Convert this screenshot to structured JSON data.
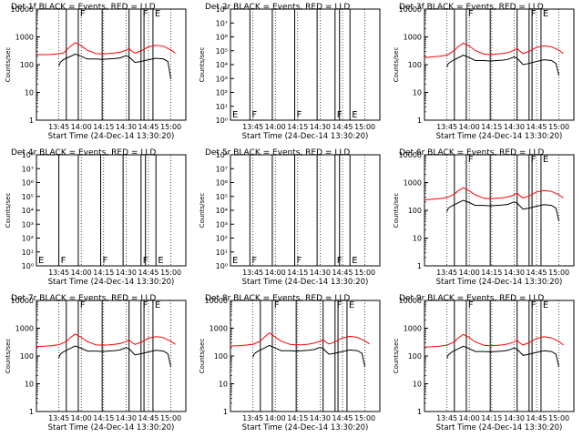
{
  "colors": {
    "events": "#000000",
    "lld": "#ff0000",
    "frame": "#000000"
  },
  "x_tick_labels": [
    "13:45",
    "14:00",
    "14:15",
    "14:30",
    "14:45",
    "15:00"
  ],
  "x_tick_minutes": [
    15,
    30,
    45,
    60,
    75,
    90
  ],
  "xlim_minutes": [
    0,
    100
  ],
  "xlabel": "Start Time (24-Dec-14 13:30:20)",
  "ylabel": "Counts/sec",
  "chart_data": [
    {
      "type": "line",
      "title": "Det 1f BLACK = Events, RED = LLD",
      "yscale": "log",
      "ylim": [
        1,
        10000
      ],
      "y_tick_labels": [
        "1",
        "10",
        "100",
        "1000",
        "10000"
      ],
      "y_tick_values": [
        1,
        10,
        100,
        1000,
        10000
      ],
      "markers": [
        {
          "label": "",
          "x": 20
        },
        {
          "label": "F",
          "x": 28
        },
        {
          "label": "",
          "x": 44
        },
        {
          "label": "",
          "x": 62
        },
        {
          "label": "F",
          "x": 70
        },
        {
          "label": "",
          "x": 72
        },
        {
          "label": "E",
          "x": 78
        }
      ],
      "series": [
        {
          "name": "RED = LLD",
          "color": "red",
          "x": [
            0,
            5,
            10,
            15,
            18,
            20,
            22,
            26,
            30,
            34,
            40,
            44,
            48,
            52,
            56,
            60,
            62,
            64,
            66,
            70,
            75,
            80,
            85,
            90,
            93
          ],
          "y": [
            230,
            230,
            235,
            245,
            260,
            330,
            420,
            620,
            480,
            330,
            250,
            245,
            250,
            260,
            280,
            330,
            380,
            300,
            260,
            310,
            440,
            500,
            460,
            340,
            260
          ]
        },
        {
          "name": "BLACK = Events",
          "color": "black",
          "x": [
            15,
            16,
            18,
            20,
            22,
            26,
            30,
            34,
            40,
            44,
            48,
            52,
            56,
            60,
            62,
            64,
            66,
            70,
            75,
            80,
            85,
            88,
            90
          ],
          "y": [
            90,
            120,
            150,
            170,
            190,
            240,
            200,
            160,
            160,
            155,
            160,
            165,
            175,
            210,
            190,
            150,
            120,
            130,
            150,
            170,
            160,
            130,
            30
          ]
        }
      ]
    },
    {
      "type": "line",
      "title": "Det 2r BLACK = Events, RED = LLD",
      "yscale": "log",
      "ylim": [
        1,
        100000000
      ],
      "y_tick_labels": [
        "10⁰",
        "10¹",
        "10²",
        "10³",
        "10⁴",
        "10⁵",
        "10⁶",
        "10⁷",
        "10⁸"
      ],
      "y_tick_values": [
        1,
        10,
        100,
        1000,
        10000,
        100000,
        1000000,
        10000000,
        100000000
      ],
      "markers": [
        {
          "label": "E",
          "x": 0
        },
        {
          "label": "F",
          "x": 13
        },
        {
          "label": "",
          "x": 28
        },
        {
          "label": "F",
          "x": 43
        },
        {
          "label": "",
          "x": 58
        },
        {
          "label": "F",
          "x": 70
        },
        {
          "label": "",
          "x": 73
        },
        {
          "label": "E",
          "x": 80
        }
      ],
      "series": []
    },
    {
      "type": "line",
      "title": "Det 3f BLACK = Events, RED = LLD",
      "yscale": "log",
      "ylim": [
        1,
        10000
      ],
      "y_tick_labels": [
        "1",
        "10",
        "100",
        "1000",
        "10000"
      ],
      "y_tick_values": [
        1,
        10,
        100,
        1000,
        10000
      ],
      "markers": [
        {
          "label": "",
          "x": 20
        },
        {
          "label": "F",
          "x": 28
        },
        {
          "label": "",
          "x": 44
        },
        {
          "label": "",
          "x": 62
        },
        {
          "label": "F",
          "x": 70
        },
        {
          "label": "",
          "x": 72
        },
        {
          "label": "E",
          "x": 78
        }
      ],
      "series": [
        {
          "name": "RED = LLD",
          "color": "red",
          "x": [
            0,
            5,
            10,
            15,
            20,
            22,
            26,
            30,
            34,
            40,
            44,
            48,
            52,
            56,
            60,
            62,
            64,
            66,
            70,
            75,
            80,
            85,
            90,
            93
          ],
          "y": [
            180,
            190,
            200,
            220,
            320,
            420,
            600,
            470,
            320,
            240,
            230,
            240,
            250,
            270,
            330,
            380,
            300,
            250,
            300,
            420,
            480,
            440,
            330,
            250
          ]
        },
        {
          "name": "BLACK = Events",
          "color": "black",
          "x": [
            15,
            16,
            18,
            20,
            22,
            26,
            30,
            34,
            40,
            44,
            48,
            52,
            56,
            60,
            62,
            64,
            66,
            70,
            75,
            80,
            85,
            88,
            90
          ],
          "y": [
            80,
            110,
            130,
            150,
            170,
            220,
            180,
            140,
            140,
            135,
            140,
            145,
            155,
            190,
            170,
            130,
            100,
            110,
            130,
            150,
            140,
            110,
            40
          ]
        }
      ]
    },
    {
      "type": "line",
      "title": "Det 4r BLACK = Events, RED = LLD",
      "yscale": "log",
      "ylim": [
        1,
        100000000
      ],
      "y_tick_labels": [
        "10⁰",
        "10¹",
        "10²",
        "10³",
        "10⁴",
        "10⁵",
        "10⁶",
        "10⁷",
        "10⁸"
      ],
      "y_tick_values": [
        1,
        10,
        100,
        1000,
        10000,
        100000,
        1000000,
        10000000,
        100000000
      ],
      "markers": [
        {
          "label": "E",
          "x": 0
        },
        {
          "label": "F",
          "x": 15
        },
        {
          "label": "",
          "x": 28
        },
        {
          "label": "F",
          "x": 43
        },
        {
          "label": "",
          "x": 58
        },
        {
          "label": "F",
          "x": 70
        },
        {
          "label": "",
          "x": 73
        },
        {
          "label": "E",
          "x": 80
        }
      ],
      "series": []
    },
    {
      "type": "line",
      "title": "Det 5r BLACK = Events, RED = LLD",
      "yscale": "log",
      "ylim": [
        1,
        100000000
      ],
      "y_tick_labels": [
        "10⁰",
        "10¹",
        "10²",
        "10³",
        "10⁴",
        "10⁵",
        "10⁶",
        "10⁷",
        "10⁸"
      ],
      "y_tick_values": [
        1,
        10,
        100,
        1000,
        10000,
        100000,
        1000000,
        10000000,
        100000000
      ],
      "markers": [
        {
          "label": "E",
          "x": 0
        },
        {
          "label": "F",
          "x": 13
        },
        {
          "label": "",
          "x": 28
        },
        {
          "label": "F",
          "x": 43
        },
        {
          "label": "",
          "x": 58
        },
        {
          "label": "F",
          "x": 70
        },
        {
          "label": "",
          "x": 73
        },
        {
          "label": "E",
          "x": 80
        }
      ],
      "series": []
    },
    {
      "type": "line",
      "title": "Det 6r BLACK = Events, RED = LLD",
      "yscale": "log",
      "ylim": [
        1,
        10000
      ],
      "y_tick_labels": [
        "1",
        "10",
        "100",
        "1000",
        "10000"
      ],
      "y_tick_values": [
        1,
        10,
        100,
        1000,
        10000
      ],
      "markers": [
        {
          "label": "",
          "x": 20
        },
        {
          "label": "F",
          "x": 28
        },
        {
          "label": "",
          "x": 44
        },
        {
          "label": "",
          "x": 62
        },
        {
          "label": "F",
          "x": 70
        },
        {
          "label": "",
          "x": 72
        },
        {
          "label": "E",
          "x": 78
        }
      ],
      "series": [
        {
          "name": "RED = LLD",
          "color": "red",
          "x": [
            0,
            5,
            10,
            15,
            20,
            22,
            26,
            30,
            34,
            40,
            44,
            48,
            52,
            56,
            60,
            62,
            64,
            66,
            70,
            75,
            80,
            85,
            90,
            93
          ],
          "y": [
            240,
            250,
            260,
            290,
            380,
            480,
            650,
            500,
            360,
            270,
            260,
            270,
            280,
            300,
            360,
            420,
            330,
            280,
            330,
            460,
            520,
            480,
            360,
            280
          ]
        },
        {
          "name": "BLACK = Events",
          "color": "black",
          "x": [
            15,
            16,
            18,
            20,
            22,
            26,
            30,
            34,
            40,
            44,
            48,
            52,
            56,
            60,
            62,
            64,
            66,
            70,
            75,
            80,
            85,
            88,
            90
          ],
          "y": [
            90,
            120,
            140,
            160,
            180,
            230,
            190,
            150,
            150,
            145,
            150,
            155,
            165,
            200,
            180,
            140,
            110,
            120,
            140,
            160,
            150,
            120,
            40
          ]
        }
      ]
    },
    {
      "type": "line",
      "title": "Det 7r BLACK = Events, RED = LLD",
      "yscale": "log",
      "ylim": [
        1,
        10000
      ],
      "y_tick_labels": [
        "1",
        "10",
        "100",
        "1000",
        "10000"
      ],
      "y_tick_values": [
        1,
        10,
        100,
        1000,
        10000
      ],
      "markers": [
        {
          "label": "",
          "x": 20
        },
        {
          "label": "F",
          "x": 28
        },
        {
          "label": "",
          "x": 44
        },
        {
          "label": "",
          "x": 62
        },
        {
          "label": "F",
          "x": 70
        },
        {
          "label": "",
          "x": 72
        },
        {
          "label": "E",
          "x": 78
        }
      ],
      "series": [
        {
          "name": "RED = LLD",
          "color": "red",
          "x": [
            0,
            5,
            10,
            15,
            20,
            22,
            26,
            30,
            34,
            40,
            44,
            48,
            52,
            56,
            60,
            62,
            64,
            66,
            70,
            75,
            80,
            85,
            90,
            93
          ],
          "y": [
            220,
            225,
            235,
            255,
            330,
            430,
            620,
            470,
            330,
            250,
            245,
            250,
            260,
            280,
            330,
            380,
            300,
            260,
            310,
            440,
            500,
            460,
            340,
            260
          ]
        },
        {
          "name": "BLACK = Events",
          "color": "black",
          "x": [
            15,
            16,
            18,
            20,
            22,
            26,
            30,
            34,
            40,
            44,
            48,
            52,
            56,
            60,
            62,
            64,
            66,
            70,
            75,
            80,
            85,
            88,
            90
          ],
          "y": [
            85,
            115,
            140,
            160,
            180,
            230,
            190,
            150,
            150,
            145,
            150,
            155,
            165,
            200,
            180,
            140,
            110,
            120,
            140,
            160,
            150,
            120,
            40
          ]
        }
      ]
    },
    {
      "type": "line",
      "title": "Det 8r BLACK = Events, RED = LLD",
      "yscale": "log",
      "ylim": [
        1,
        10000
      ],
      "y_tick_labels": [
        "1",
        "10",
        "100",
        "1000",
        "10000"
      ],
      "y_tick_values": [
        1,
        10,
        100,
        1000,
        10000
      ],
      "markers": [
        {
          "label": "",
          "x": 20
        },
        {
          "label": "F",
          "x": 28
        },
        {
          "label": "",
          "x": 44
        },
        {
          "label": "",
          "x": 62
        },
        {
          "label": "F",
          "x": 70
        },
        {
          "label": "",
          "x": 72
        },
        {
          "label": "E",
          "x": 78
        }
      ],
      "series": [
        {
          "name": "RED = LLD",
          "color": "red",
          "x": [
            0,
            5,
            10,
            15,
            20,
            22,
            26,
            30,
            34,
            40,
            44,
            48,
            52,
            56,
            60,
            62,
            64,
            66,
            70,
            75,
            80,
            85,
            90,
            93
          ],
          "y": [
            230,
            235,
            245,
            265,
            340,
            440,
            680,
            480,
            340,
            260,
            250,
            255,
            265,
            290,
            340,
            390,
            310,
            270,
            320,
            450,
            510,
            470,
            350,
            270
          ]
        },
        {
          "name": "BLACK = Events",
          "color": "black",
          "x": [
            15,
            16,
            18,
            20,
            22,
            26,
            30,
            34,
            40,
            44,
            48,
            52,
            56,
            60,
            62,
            64,
            66,
            70,
            75,
            80,
            85,
            88,
            90
          ],
          "y": [
            90,
            120,
            145,
            165,
            185,
            240,
            195,
            155,
            155,
            150,
            155,
            160,
            170,
            205,
            185,
            145,
            115,
            125,
            145,
            165,
            155,
            125,
            40
          ]
        }
      ]
    },
    {
      "type": "line",
      "title": "Det 9r BLACK = Events, RED = LLD",
      "yscale": "log",
      "ylim": [
        1,
        10000
      ],
      "y_tick_labels": [
        "1",
        "10",
        "100",
        "1000",
        "10000"
      ],
      "y_tick_values": [
        1,
        10,
        100,
        1000,
        10000
      ],
      "markers": [
        {
          "label": "",
          "x": 20
        },
        {
          "label": "F",
          "x": 28
        },
        {
          "label": "",
          "x": 44
        },
        {
          "label": "",
          "x": 62
        },
        {
          "label": "F",
          "x": 70
        },
        {
          "label": "",
          "x": 72
        },
        {
          "label": "E",
          "x": 78
        }
      ],
      "series": [
        {
          "name": "RED = LLD",
          "color": "red",
          "x": [
            0,
            5,
            10,
            15,
            20,
            22,
            26,
            30,
            34,
            40,
            44,
            48,
            52,
            56,
            60,
            62,
            64,
            66,
            70,
            75,
            80,
            85,
            90,
            93
          ],
          "y": [
            210,
            215,
            225,
            245,
            320,
            420,
            600,
            460,
            320,
            240,
            235,
            240,
            250,
            270,
            320,
            370,
            290,
            250,
            300,
            430,
            490,
            450,
            330,
            250
          ]
        },
        {
          "name": "BLACK = Events",
          "color": "black",
          "x": [
            15,
            16,
            18,
            20,
            22,
            26,
            30,
            34,
            40,
            44,
            48,
            52,
            56,
            60,
            62,
            64,
            66,
            70,
            75,
            80,
            85,
            88,
            90
          ],
          "y": [
            80,
            110,
            135,
            155,
            175,
            225,
            185,
            145,
            145,
            140,
            145,
            150,
            160,
            195,
            175,
            135,
            105,
            115,
            135,
            155,
            145,
            115,
            40
          ]
        }
      ]
    }
  ]
}
